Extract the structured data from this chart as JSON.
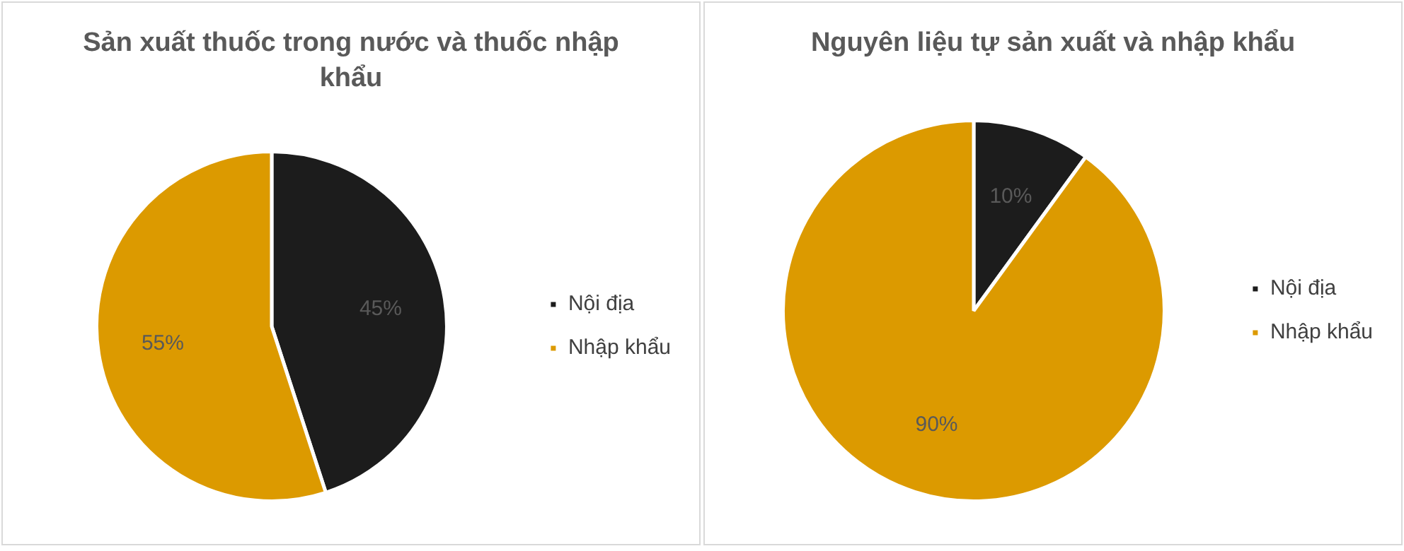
{
  "chart_data": [
    {
      "type": "pie",
      "title": "Sản xuất thuốc trong nước và thuốc nhập khẩu",
      "categories": [
        "Nội địa",
        "Nhập khẩu"
      ],
      "values": [
        45,
        55
      ],
      "colors": [
        "#1c1c1c",
        "#dc9a00"
      ],
      "value_labels": [
        "45%",
        "55%"
      ],
      "legend": "right"
    },
    {
      "type": "pie",
      "title": "Nguyên liệu tự sản xuất và nhập khẩu",
      "categories": [
        "Nội địa",
        "Nhập khẩu"
      ],
      "values": [
        10,
        90
      ],
      "colors": [
        "#1c1c1c",
        "#dc9a00"
      ],
      "value_labels": [
        "10%",
        "90%"
      ],
      "legend": "right"
    }
  ]
}
